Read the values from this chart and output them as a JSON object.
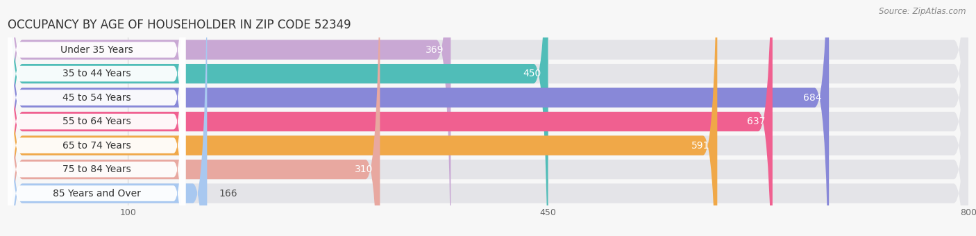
{
  "title": "OCCUPANCY BY AGE OF HOUSEHOLDER IN ZIP CODE 52349",
  "source": "Source: ZipAtlas.com",
  "categories": [
    "Under 35 Years",
    "35 to 44 Years",
    "45 to 54 Years",
    "55 to 64 Years",
    "65 to 74 Years",
    "75 to 84 Years",
    "85 Years and Over"
  ],
  "values": [
    369,
    450,
    684,
    637,
    591,
    310,
    166
  ],
  "bar_colors": [
    "#c9a8d4",
    "#50bdb8",
    "#8888d8",
    "#f06090",
    "#f0a848",
    "#e8a8a0",
    "#a8c8f0"
  ],
  "bar_bg_color": "#e4e4e8",
  "xlim_min": 0,
  "xlim_max": 800,
  "xticks": [
    100,
    450,
    800
  ],
  "title_fontsize": 12,
  "value_label_fontsize": 10,
  "category_fontsize": 10,
  "bg_color": "#f7f7f7",
  "value_label_color_inside": "#ffffff",
  "value_label_color_outside": "#555555",
  "bar_gap": 0.18
}
